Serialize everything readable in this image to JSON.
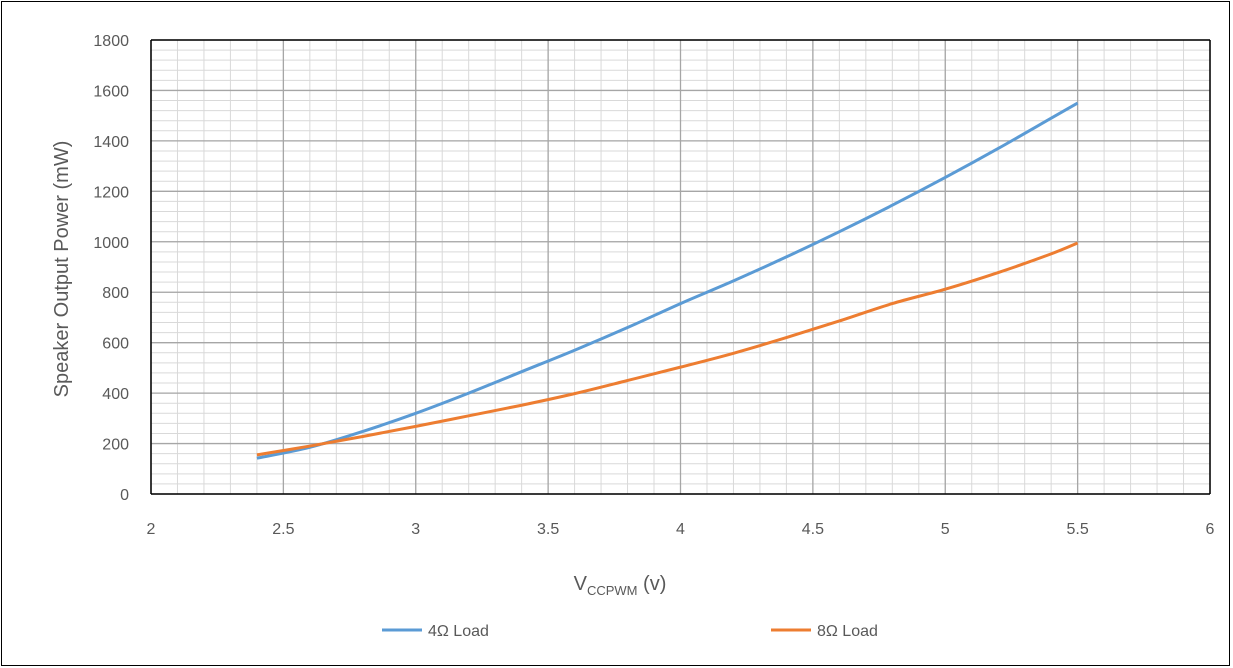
{
  "chart_data": {
    "type": "line",
    "title": "",
    "xlabel": "V",
    "xlabel_subscript": "CCPWM",
    "xlabel_suffix": " (v)",
    "ylabel": "Speaker Output Power (mW)",
    "xlim": [
      2,
      6
    ],
    "ylim": [
      0,
      1800
    ],
    "x_ticks": [
      "2",
      "2.5",
      "3",
      "3.5",
      "4",
      "4.5",
      "5",
      "5.5",
      "6"
    ],
    "y_ticks": [
      "0",
      "200",
      "400",
      "600",
      "800",
      "1000",
      "1200",
      "1400",
      "1600",
      "1800"
    ],
    "x_tick_values": [
      2,
      2.5,
      3,
      3.5,
      4,
      4.5,
      5,
      5.5,
      6
    ],
    "y_tick_values": [
      0,
      200,
      400,
      600,
      800,
      1000,
      1200,
      1400,
      1600,
      1800
    ],
    "grid": true,
    "legend_position": "bottom",
    "series": [
      {
        "name": "4Ω Load",
        "color": "#5B9BD5",
        "x": [
          2.4,
          2.6,
          2.8,
          3.0,
          3.2,
          3.4,
          3.6,
          3.8,
          4.0,
          4.2,
          4.4,
          4.6,
          4.8,
          5.0,
          5.2,
          5.4,
          5.5
        ],
        "y": [
          142,
          185,
          248,
          320,
          400,
          485,
          570,
          660,
          755,
          845,
          940,
          1040,
          1145,
          1255,
          1370,
          1490,
          1550
        ]
      },
      {
        "name": "8Ω Load",
        "color": "#ED7D31",
        "x": [
          2.4,
          2.6,
          2.8,
          3.0,
          3.2,
          3.4,
          3.6,
          3.8,
          4.0,
          4.2,
          4.4,
          4.6,
          4.8,
          5.0,
          5.2,
          5.4,
          5.5
        ],
        "y": [
          155,
          190,
          228,
          268,
          310,
          352,
          398,
          450,
          503,
          558,
          620,
          686,
          755,
          812,
          878,
          952,
          995
        ]
      }
    ]
  }
}
